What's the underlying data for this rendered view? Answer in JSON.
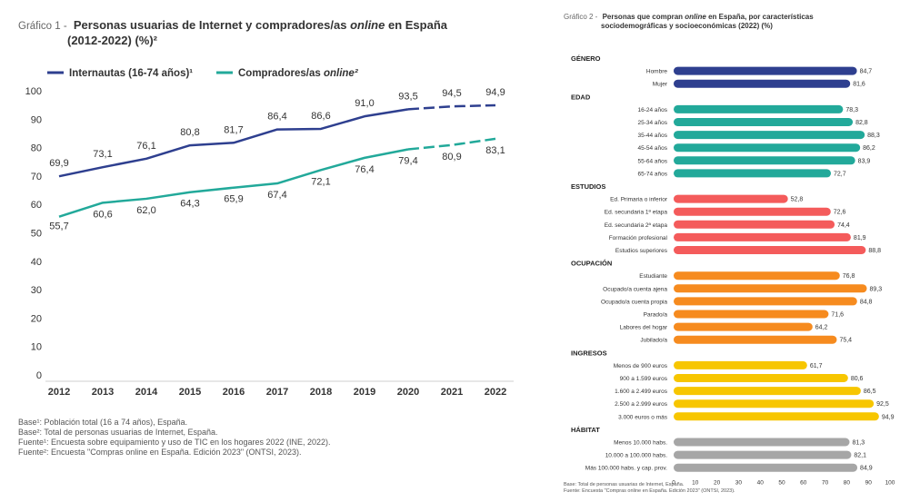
{
  "chart1": {
    "prefix": "Gráfico 1 -",
    "title_a": "Personas usuarias de Internet y compradores/as ",
    "title_online": "online",
    "title_b": " en España",
    "title_line2": "(2012-2022) (%)²",
    "legend": [
      {
        "label": "Internautas (16-74 años)¹",
        "italic": "",
        "color": "#2e3f8f"
      },
      {
        "label": "Compradores/as ",
        "italic": "online²",
        "color": "#22a99a"
      }
    ],
    "notes": [
      "Base¹: Población total (16 a 74 años), España.",
      "Base²: Total de personas usuarias de Internet, España.",
      "Fuente¹: Encuesta sobre equipamiento y uso de TIC en los hogares 2022 (INE, 2022).",
      "Fuente²: Encuesta \"Compras online en España. Edición 2023\" (ONTSI, 2023)."
    ]
  },
  "chart2": {
    "prefix": "Gráfico 2 -",
    "title_a": "Personas que compran ",
    "title_online": "online",
    "title_b": " en España, por características",
    "title_line2": "sociodemográficas y socioeconómicas (2022) (%)",
    "notes": [
      "Base: Total de personas usuarias de Internet, España.",
      "Fuente: Encuesta \"Compras online en España. Edición 2023\" (ONTSI, 2023)."
    ]
  },
  "chart_data": [
    {
      "type": "line",
      "x": [
        "2012",
        "2013",
        "2014",
        "2015",
        "2016",
        "2017",
        "2018",
        "2019",
        "2020",
        "2021",
        "2022"
      ],
      "ylim": [
        0,
        100
      ],
      "yticks": [
        0,
        10,
        20,
        30,
        40,
        50,
        60,
        70,
        80,
        90,
        100
      ],
      "grid": false,
      "legend_position": "top-left",
      "series": [
        {
          "name": "Internautas (16-74 años)¹",
          "color": "#2e3f8f",
          "values": [
            69.9,
            73.1,
            76.1,
            80.8,
            81.7,
            86.4,
            86.6,
            91.0,
            93.5,
            94.5,
            94.9
          ],
          "labels": [
            "69,9",
            "73,1",
            "76,1",
            "80,8",
            "81,7",
            "86,4",
            "86,6",
            "91,0",
            "93,5",
            "94,5",
            "94,9"
          ]
        },
        {
          "name": "Compradores/as online²",
          "color": "#22a99a",
          "values": [
            55.7,
            60.6,
            62.0,
            64.3,
            65.9,
            67.4,
            72.1,
            76.4,
            79.4,
            80.9,
            83.1
          ],
          "labels": [
            "55,7",
            "60,6",
            "62,0",
            "64,3",
            "65,9",
            "67,4",
            "72,1",
            "76,4",
            "79,4",
            "80,9",
            "83,1"
          ]
        }
      ]
    },
    {
      "type": "bar",
      "orientation": "horizontal",
      "xlim": [
        0,
        100
      ],
      "xticks": [
        0,
        10,
        20,
        30,
        40,
        50,
        60,
        70,
        80,
        90,
        100
      ],
      "groups": [
        {
          "name": "GÉNERO",
          "color": "#2e3f8f",
          "items": [
            {
              "label": "Hombre",
              "value": 84.7,
              "text": "84,7"
            },
            {
              "label": "Mujer",
              "value": 81.6,
              "text": "81,6"
            }
          ]
        },
        {
          "name": "EDAD",
          "color": "#22a99a",
          "items": [
            {
              "label": "16-24 años",
              "value": 78.3,
              "text": "78,3"
            },
            {
              "label": "25-34 años",
              "value": 82.8,
              "text": "82,8"
            },
            {
              "label": "35-44 años",
              "value": 88.3,
              "text": "88,3"
            },
            {
              "label": "45-54 años",
              "value": 86.2,
              "text": "86,2"
            },
            {
              "label": "55-64 años",
              "value": 83.9,
              "text": "83,9"
            },
            {
              "label": "65-74 años",
              "value": 72.7,
              "text": "72,7"
            }
          ]
        },
        {
          "name": "ESTUDIOS",
          "color": "#f45b5b",
          "items": [
            {
              "label": "Ed. Primaria o inferior",
              "value": 52.8,
              "text": "52,8"
            },
            {
              "label": "Ed. secundaria 1ª etapa",
              "value": 72.6,
              "text": "72,6"
            },
            {
              "label": "Ed. secundaria 2ª etapa",
              "value": 74.4,
              "text": "74,4"
            },
            {
              "label": "Formación profesional",
              "value": 81.9,
              "text": "81,9"
            },
            {
              "label": "Estudios superiores",
              "value": 88.8,
              "text": "88,8"
            }
          ]
        },
        {
          "name": "OCUPACIÓN",
          "color": "#f68b1f",
          "items": [
            {
              "label": "Estudiante",
              "value": 76.8,
              "text": "76,8"
            },
            {
              "label": "Ocupado/a cuenta ajena",
              "value": 89.3,
              "text": "89,3"
            },
            {
              "label": "Ocupado/a cuenta propia",
              "value": 84.8,
              "text": "84,8"
            },
            {
              "label": "Parado/a",
              "value": 71.6,
              "text": "71,6"
            },
            {
              "label": "Labores del hogar",
              "value": 64.2,
              "text": "64,2"
            },
            {
              "label": "Jubilado/a",
              "value": 75.4,
              "text": "75,4"
            }
          ]
        },
        {
          "name": "INGRESOS",
          "color": "#f7c600",
          "items": [
            {
              "label": "Menos de 900 euros",
              "value": 61.7,
              "text": "61,7"
            },
            {
              "label": "900 a 1.599 euros",
              "value": 80.6,
              "text": "80,6"
            },
            {
              "label": "1.600 a 2.499 euros",
              "value": 86.5,
              "text": "86,5"
            },
            {
              "label": "2.500 a 2.999 euros",
              "value": 92.5,
              "text": "92,5"
            },
            {
              "label": "3.000 euros o más",
              "value": 94.9,
              "text": "94,9"
            }
          ]
        },
        {
          "name": "HÁBITAT",
          "color": "#a6a6a6",
          "items": [
            {
              "label": "Menos 10.000 habs.",
              "value": 81.3,
              "text": "81,3"
            },
            {
              "label": "10.000 a 100.000 habs.",
              "value": 82.1,
              "text": "82,1"
            },
            {
              "label": "Más 100.000 habs. y cap. prov.",
              "value": 84.9,
              "text": "84,9"
            }
          ]
        }
      ]
    }
  ]
}
